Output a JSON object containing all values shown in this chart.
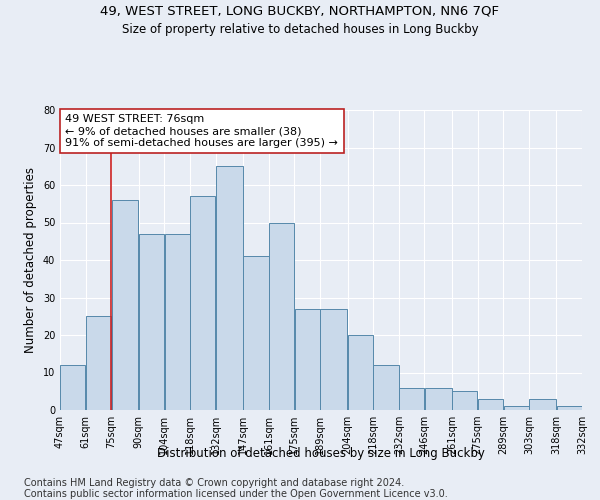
{
  "title1": "49, WEST STREET, LONG BUCKBY, NORTHAMPTON, NN6 7QF",
  "title2": "Size of property relative to detached houses in Long Buckby",
  "xlabel": "Distribution of detached houses by size in Long Buckby",
  "ylabel": "Number of detached properties",
  "footnote1": "Contains HM Land Registry data © Crown copyright and database right 2024.",
  "footnote2": "Contains public sector information licensed under the Open Government Licence v3.0.",
  "annotation_line1": "49 WEST STREET: 76sqm",
  "annotation_line2": "← 9% of detached houses are smaller (38)",
  "annotation_line3": "91% of semi-detached houses are larger (395) →",
  "bar_left_edges": [
    47,
    61,
    75,
    90,
    104,
    118,
    132,
    147,
    161,
    175,
    189,
    204,
    218,
    232,
    246,
    261,
    275,
    289,
    303,
    318
  ],
  "bar_widths": [
    14,
    14,
    15,
    14,
    14,
    14,
    15,
    14,
    14,
    14,
    15,
    14,
    14,
    14,
    15,
    14,
    14,
    14,
    15,
    14
  ],
  "bar_heights": [
    12,
    25,
    56,
    47,
    47,
    57,
    65,
    41,
    50,
    27,
    27,
    20,
    12,
    6,
    6,
    5,
    3,
    1,
    3,
    1
  ],
  "tick_labels": [
    "47sqm",
    "61sqm",
    "75sqm",
    "90sqm",
    "104sqm",
    "118sqm",
    "132sqm",
    "147sqm",
    "161sqm",
    "175sqm",
    "189sqm",
    "204sqm",
    "218sqm",
    "232sqm",
    "246sqm",
    "261sqm",
    "275sqm",
    "289sqm",
    "303sqm",
    "318sqm",
    "332sqm"
  ],
  "bar_color": "#c9d9ea",
  "bar_edge_color": "#5588aa",
  "red_line_x": 75,
  "ylim": [
    0,
    80
  ],
  "yticks": [
    0,
    10,
    20,
    30,
    40,
    50,
    60,
    70,
    80
  ],
  "bg_color": "#e8edf5",
  "axes_bg_color": "#e8edf5",
  "grid_color": "#ffffff",
  "annotation_box_color": "#ffffff",
  "annotation_box_edge": "#bb2222",
  "title1_fontsize": 9.5,
  "title2_fontsize": 8.5,
  "annotation_fontsize": 8,
  "xlabel_fontsize": 8.5,
  "ylabel_fontsize": 8.5,
  "footnote_fontsize": 7,
  "tick_fontsize": 7
}
